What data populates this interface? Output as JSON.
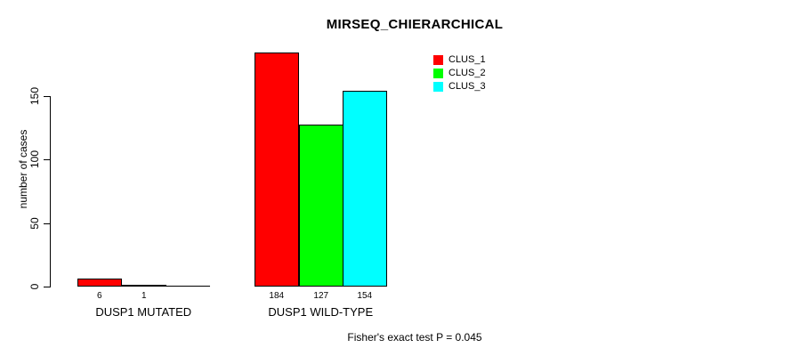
{
  "chart_data": {
    "type": "bar",
    "title": "MIRSEQ_CHIERARCHICAL",
    "xlabel": "",
    "ylabel": "number of cases",
    "categories": [
      "DUSP1 MUTATED",
      "DUSP1 WILD-TYPE"
    ],
    "series": [
      {
        "name": "CLUS_1",
        "color": "#ff0000",
        "values": [
          6,
          184
        ]
      },
      {
        "name": "CLUS_2",
        "color": "#00ff00",
        "values": [
          1,
          127
        ]
      },
      {
        "name": "CLUS_3",
        "color": "#00ffff",
        "values": [
          0,
          154
        ]
      }
    ],
    "value_labels": [
      [
        "6",
        "1",
        ""
      ],
      [
        "184",
        "127",
        "154"
      ]
    ],
    "yticks": [
      0,
      50,
      100,
      150
    ],
    "ylim": [
      0,
      190
    ],
    "grid": false,
    "legend_position": "top-right",
    "bar_border_color": "#000000",
    "annotation": "Fisher's exact test P = 0.045"
  },
  "legend": {
    "items": [
      {
        "label": "CLUS_1",
        "color": "#ff0000"
      },
      {
        "label": "CLUS_2",
        "color": "#00ff00"
      },
      {
        "label": "CLUS_3",
        "color": "#00ffff"
      }
    ]
  }
}
